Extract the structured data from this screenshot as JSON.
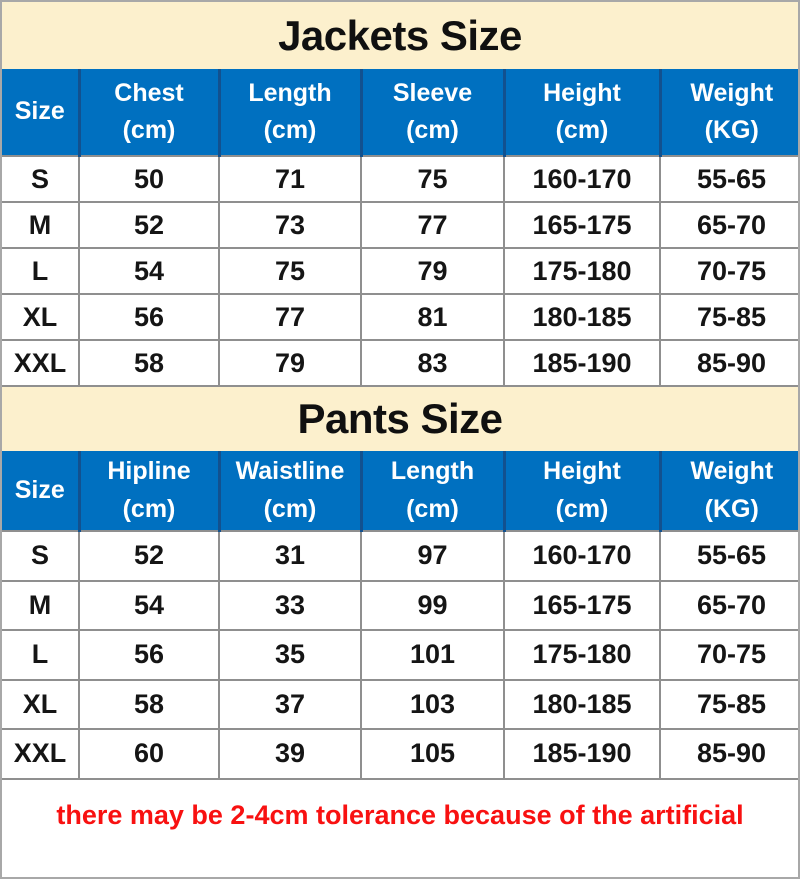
{
  "colors": {
    "title_band_bg": "#FCF0CD",
    "header_bg": "#0070C0",
    "header_divider": "#12518F",
    "header_text": "#FFFFFF",
    "grid_line": "#8F8F8F",
    "cell_text": "#151515",
    "title_text": "#101010",
    "note_text": "#F81111",
    "outer_border": "#A8A8A8",
    "table_bg": "#FFFFFF"
  },
  "chart_data": [
    {
      "type": "table",
      "title": "Jackets Size",
      "columns": [
        {
          "label": "Size",
          "unit": ""
        },
        {
          "label": "Chest",
          "unit": "(cm)"
        },
        {
          "label": "Length",
          "unit": "(cm)"
        },
        {
          "label": "Sleeve",
          "unit": "(cm)"
        },
        {
          "label": "Height",
          "unit": "(cm)"
        },
        {
          "label": "Weight",
          "unit": "(KG)"
        }
      ],
      "rows": [
        [
          "S",
          "50",
          "71",
          "75",
          "160-170",
          "55-65"
        ],
        [
          "M",
          "52",
          "73",
          "77",
          "165-175",
          "65-70"
        ],
        [
          "L",
          "54",
          "75",
          "79",
          "175-180",
          "70-75"
        ],
        [
          "XL",
          "56",
          "77",
          "81",
          "180-185",
          "75-85"
        ],
        [
          "XXL",
          "58",
          "79",
          "83",
          "185-190",
          "85-90"
        ]
      ]
    },
    {
      "type": "table",
      "title": "Pants Size",
      "columns": [
        {
          "label": "Size",
          "unit": ""
        },
        {
          "label": "Hipline",
          "unit": "(cm)"
        },
        {
          "label": "Waistline",
          "unit": "(cm)"
        },
        {
          "label": "Length",
          "unit": "(cm)"
        },
        {
          "label": "Height",
          "unit": "(cm)"
        },
        {
          "label": "Weight",
          "unit": "(KG)"
        }
      ],
      "rows": [
        [
          "S",
          "52",
          "31",
          "97",
          "160-170",
          "55-65"
        ],
        [
          "M",
          "54",
          "33",
          "99",
          "165-175",
          "65-70"
        ],
        [
          "L",
          "56",
          "35",
          "101",
          "175-180",
          "70-75"
        ],
        [
          "XL",
          "58",
          "37",
          "103",
          "180-185",
          "75-85"
        ],
        [
          "XXL",
          "60",
          "39",
          "105",
          "185-190",
          "85-90"
        ]
      ]
    }
  ],
  "footer": {
    "note": "there may be 2-4cm tolerance because of the artificial"
  }
}
